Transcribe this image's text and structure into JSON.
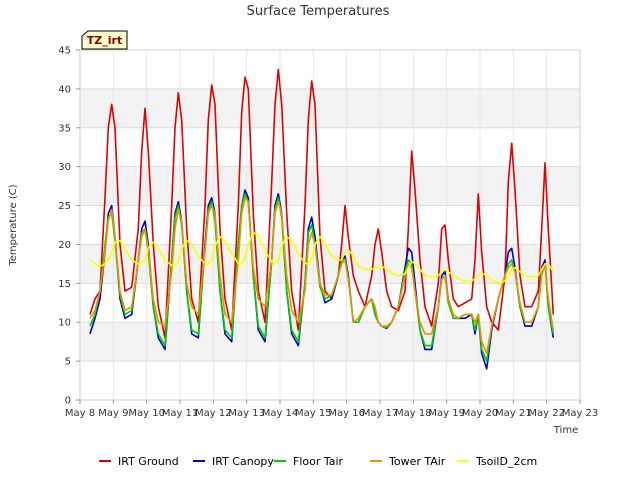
{
  "chart_data": {
    "type": "line",
    "title": "Surface Temperatures",
    "xlabel": "Time",
    "ylabel": "Temperature (C)",
    "site_tag": "TZ_irt",
    "xlim": [
      8,
      23
    ],
    "ylim": [
      0,
      45
    ],
    "x_ticks": [
      8,
      9,
      10,
      11,
      12,
      13,
      14,
      15,
      16,
      17,
      18,
      19,
      20,
      21,
      22,
      23
    ],
    "x_tick_labels": [
      "May 8",
      "May 9",
      "May 10",
      "May 11",
      "May 12",
      "May 13",
      "May 14",
      "May 15",
      "May 16",
      "May 17",
      "May 18",
      "May 19",
      "May 20",
      "May 21",
      "May 22",
      "May 23"
    ],
    "y_ticks": [
      0,
      5,
      10,
      15,
      20,
      25,
      30,
      35,
      40,
      45
    ],
    "y_tick_labels": [
      "0",
      "5",
      "10",
      "15",
      "20",
      "25",
      "30",
      "35",
      "40",
      "45"
    ],
    "grid": true,
    "legend_position": "bottom",
    "series": [
      {
        "name": "IRT Ground",
        "color": "#e00000",
        "x": [
          8.3,
          8.45,
          8.6,
          8.75,
          8.85,
          8.95,
          9.05,
          9.2,
          9.35,
          9.55,
          9.75,
          9.85,
          9.95,
          10.05,
          10.2,
          10.35,
          10.55,
          10.75,
          10.85,
          10.95,
          11.05,
          11.2,
          11.35,
          11.55,
          11.75,
          11.85,
          11.95,
          12.05,
          12.2,
          12.35,
          12.55,
          12.75,
          12.85,
          12.95,
          13.05,
          13.2,
          13.35,
          13.55,
          13.75,
          13.85,
          13.95,
          14.05,
          14.2,
          14.35,
          14.55,
          14.75,
          14.85,
          14.95,
          15.05,
          15.2,
          15.35,
          15.55,
          15.75,
          15.85,
          15.95,
          16.05,
          16.2,
          16.35,
          16.55,
          16.75,
          16.85,
          16.95,
          17.05,
          17.2,
          17.35,
          17.55,
          17.75,
          17.85,
          17.95,
          18.05,
          18.2,
          18.35,
          18.55,
          18.75,
          18.85,
          18.95,
          19.05,
          19.2,
          19.35,
          19.55,
          19.75,
          19.85,
          19.95,
          20.05,
          20.2,
          20.35,
          20.55,
          20.75,
          20.85,
          20.95,
          21.05,
          21.2,
          21.35,
          21.55,
          21.75,
          21.85,
          21.95,
          22.05,
          22.2
        ],
        "y": [
          11.0,
          13.0,
          14.0,
          26.0,
          35.0,
          38.0,
          35.0,
          20.0,
          14.0,
          14.5,
          22.0,
          32.0,
          37.5,
          32.0,
          20.0,
          12.0,
          8.0,
          25.0,
          35.0,
          39.5,
          36.0,
          22.0,
          13.0,
          10.0,
          25.0,
          36.0,
          40.5,
          38.0,
          22.0,
          13.0,
          9.0,
          25.0,
          37.0,
          41.5,
          40.0,
          24.0,
          14.0,
          10.0,
          28.0,
          38.0,
          42.5,
          38.0,
          24.0,
          14.0,
          9.0,
          25.0,
          36.0,
          41.0,
          38.0,
          21.0,
          14.0,
          13.0,
          16.0,
          20.0,
          25.0,
          21.0,
          16.0,
          14.0,
          12.0,
          16.0,
          20.0,
          22.0,
          19.0,
          14.0,
          12.0,
          11.5,
          14.0,
          22.0,
          32.0,
          27.0,
          18.0,
          12.0,
          9.5,
          15.0,
          22.0,
          22.5,
          18.0,
          13.0,
          12.0,
          12.5,
          13.0,
          18.0,
          26.5,
          19.0,
          12.0,
          10.0,
          9.0,
          16.0,
          28.0,
          33.0,
          27.0,
          16.0,
          12.0,
          12.0,
          14.0,
          22.0,
          30.5,
          22.0,
          11.0
        ]
      },
      {
        "name": "IRT Canopy",
        "color": "#0000cc",
        "x": [
          8.3,
          8.45,
          8.6,
          8.75,
          8.85,
          8.95,
          9.05,
          9.2,
          9.35,
          9.55,
          9.75,
          9.85,
          9.95,
          10.05,
          10.2,
          10.35,
          10.55,
          10.75,
          10.85,
          10.95,
          11.05,
          11.2,
          11.35,
          11.55,
          11.75,
          11.85,
          11.95,
          12.05,
          12.2,
          12.35,
          12.55,
          12.75,
          12.85,
          12.95,
          13.05,
          13.2,
          13.35,
          13.55,
          13.75,
          13.85,
          13.95,
          14.05,
          14.2,
          14.35,
          14.55,
          14.75,
          14.85,
          14.95,
          15.05,
          15.2,
          15.35,
          15.55,
          15.75,
          15.85,
          15.95,
          16.05,
          16.2,
          16.35,
          16.55,
          16.75,
          16.85,
          16.95,
          17.05,
          17.2,
          17.35,
          17.55,
          17.75,
          17.85,
          17.95,
          18.05,
          18.2,
          18.35,
          18.55,
          18.75,
          18.85,
          18.95,
          19.05,
          19.2,
          19.35,
          19.55,
          19.75,
          19.85,
          19.95,
          20.05,
          20.2,
          20.35,
          20.55,
          20.75,
          20.85,
          20.95,
          21.05,
          21.2,
          21.35,
          21.55,
          21.75,
          21.85,
          21.95,
          22.05,
          22.2
        ],
        "y": [
          8.5,
          10.5,
          13.0,
          19.0,
          24.0,
          25.0,
          21.0,
          13.0,
          10.5,
          11.0,
          18.0,
          22.0,
          23.0,
          20.0,
          12.0,
          8.0,
          6.5,
          18.0,
          24.0,
          25.5,
          23.0,
          14.0,
          8.5,
          8.0,
          20.0,
          25.0,
          26.0,
          24.0,
          14.0,
          8.5,
          7.5,
          20.0,
          25.0,
          27.0,
          26.0,
          16.0,
          9.0,
          7.5,
          18.0,
          25.0,
          26.5,
          24.0,
          14.0,
          8.5,
          7.0,
          15.0,
          22.0,
          23.5,
          21.0,
          15.0,
          12.5,
          13.0,
          16.0,
          18.0,
          18.5,
          16.0,
          10.0,
          10.0,
          12.0,
          13.0,
          11.0,
          10.0,
          9.5,
          9.2,
          10.0,
          12.0,
          17.0,
          19.5,
          19.0,
          15.0,
          9.0,
          6.5,
          6.5,
          12.0,
          16.0,
          16.5,
          13.0,
          10.5,
          10.5,
          10.5,
          11.0,
          8.5,
          11.0,
          6.0,
          4.0,
          9.0,
          13.0,
          16.0,
          19.0,
          19.5,
          17.0,
          12.0,
          9.5,
          9.5,
          12.0,
          17.0,
          18.0,
          12.0,
          8.0
        ]
      },
      {
        "name": "Floor Tair",
        "color": "#00cc00",
        "x": [
          8.3,
          8.45,
          8.6,
          8.75,
          8.85,
          8.95,
          9.05,
          9.2,
          9.35,
          9.55,
          9.75,
          9.85,
          9.95,
          10.05,
          10.2,
          10.35,
          10.55,
          10.75,
          10.85,
          10.95,
          11.05,
          11.2,
          11.35,
          11.55,
          11.75,
          11.85,
          11.95,
          12.05,
          12.2,
          12.35,
          12.55,
          12.75,
          12.85,
          12.95,
          13.05,
          13.2,
          13.35,
          13.55,
          13.75,
          13.85,
          13.95,
          14.05,
          14.2,
          14.35,
          14.55,
          14.75,
          14.85,
          14.95,
          15.05,
          15.2,
          15.35,
          15.55,
          15.75,
          15.85,
          15.95,
          16.05,
          16.2,
          16.35,
          16.55,
          16.75,
          16.85,
          16.95,
          17.05,
          17.2,
          17.35,
          17.55,
          17.75,
          17.85,
          17.95,
          18.05,
          18.2,
          18.35,
          18.55,
          18.75,
          18.85,
          18.95,
          19.05,
          19.2,
          19.35,
          19.55,
          19.75,
          19.85,
          19.95,
          20.05,
          20.2,
          20.35,
          20.55,
          20.75,
          20.85,
          20.95,
          21.05,
          21.2,
          21.35,
          21.55,
          21.75,
          21.85,
          21.95,
          22.05,
          22.2
        ],
        "y": [
          9.5,
          11.0,
          14.0,
          20.0,
          23.5,
          24.0,
          20.5,
          13.5,
          11.0,
          11.5,
          18.0,
          21.5,
          22.0,
          19.0,
          12.0,
          8.5,
          7.0,
          18.0,
          23.5,
          25.0,
          22.5,
          14.0,
          9.0,
          8.5,
          19.5,
          24.5,
          25.5,
          23.0,
          14.0,
          9.0,
          8.0,
          20.0,
          25.0,
          26.5,
          25.5,
          16.0,
          9.5,
          8.0,
          18.0,
          24.5,
          26.0,
          23.5,
          14.0,
          9.0,
          7.5,
          15.0,
          21.5,
          22.5,
          20.0,
          14.5,
          13.0,
          13.5,
          16.0,
          18.0,
          18.0,
          15.5,
          10.0,
          10.0,
          12.0,
          13.0,
          11.0,
          10.0,
          9.5,
          9.3,
          10.0,
          12.0,
          16.5,
          18.0,
          17.5,
          14.0,
          9.0,
          7.0,
          7.0,
          12.0,
          15.5,
          16.0,
          12.5,
          10.5,
          10.5,
          11.0,
          11.0,
          9.0,
          11.0,
          6.5,
          5.0,
          9.5,
          13.0,
          16.0,
          17.5,
          18.0,
          16.5,
          12.0,
          10.0,
          10.0,
          12.0,
          16.5,
          17.5,
          12.0,
          8.5
        ]
      },
      {
        "name": "Tower TAir",
        "color": "#e69500",
        "x": [
          8.3,
          8.45,
          8.6,
          8.75,
          8.85,
          8.95,
          9.05,
          9.2,
          9.35,
          9.55,
          9.75,
          9.85,
          9.95,
          10.05,
          10.2,
          10.35,
          10.55,
          10.75,
          10.85,
          10.95,
          11.05,
          11.2,
          11.35,
          11.55,
          11.75,
          11.85,
          11.95,
          12.05,
          12.2,
          12.35,
          12.55,
          12.75,
          12.85,
          12.95,
          13.05,
          13.2,
          13.35,
          13.55,
          13.75,
          13.85,
          13.95,
          14.05,
          14.2,
          14.35,
          14.55,
          14.75,
          14.85,
          14.95,
          15.05,
          15.2,
          15.35,
          15.55,
          15.75,
          15.85,
          15.95,
          16.05,
          16.2,
          16.35,
          16.55,
          16.75,
          16.85,
          16.95,
          17.05,
          17.2,
          17.35,
          17.55,
          17.75,
          17.85,
          17.95,
          18.05,
          18.2,
          18.35,
          18.55,
          18.75,
          18.85,
          18.95,
          19.05,
          19.2,
          19.35,
          19.55,
          19.75,
          19.85,
          19.95,
          20.05,
          20.2,
          20.35,
          20.55,
          20.75,
          20.85,
          20.95,
          21.05,
          21.2,
          21.35,
          21.55,
          21.75,
          21.85,
          21.95,
          22.05,
          22.2
        ],
        "y": [
          10.5,
          11.5,
          14.0,
          19.0,
          23.0,
          24.5,
          21.0,
          14.0,
          11.5,
          12.0,
          18.0,
          21.0,
          22.0,
          19.5,
          13.0,
          10.0,
          9.5,
          16.5,
          22.0,
          24.5,
          23.0,
          15.0,
          12.0,
          11.0,
          19.0,
          24.0,
          25.0,
          24.0,
          16.0,
          11.0,
          10.0,
          18.0,
          24.0,
          26.0,
          25.5,
          17.0,
          13.0,
          12.0,
          18.0,
          24.0,
          25.5,
          24.0,
          16.0,
          11.5,
          10.0,
          14.0,
          20.0,
          21.5,
          20.0,
          15.0,
          13.5,
          13.5,
          16.0,
          17.5,
          18.0,
          15.5,
          10.0,
          10.5,
          12.0,
          13.0,
          12.0,
          10.0,
          9.5,
          9.5,
          10.0,
          12.0,
          16.0,
          17.5,
          17.0,
          14.0,
          10.0,
          8.5,
          8.5,
          12.0,
          15.5,
          16.0,
          13.0,
          11.0,
          10.5,
          11.0,
          11.0,
          10.0,
          11.0,
          7.5,
          6.0,
          9.5,
          13.0,
          16.0,
          17.0,
          17.5,
          16.5,
          12.5,
          10.0,
          10.0,
          12.0,
          16.0,
          17.5,
          13.0,
          9.0
        ]
      },
      {
        "name": "TsoilD_2cm",
        "color": "#ffff00",
        "x": [
          8.3,
          8.45,
          8.6,
          8.75,
          8.85,
          8.95,
          9.05,
          9.2,
          9.35,
          9.55,
          9.75,
          9.85,
          9.95,
          10.05,
          10.2,
          10.35,
          10.55,
          10.75,
          10.85,
          10.95,
          11.05,
          11.2,
          11.35,
          11.55,
          11.75,
          11.85,
          11.95,
          12.05,
          12.2,
          12.35,
          12.55,
          12.75,
          12.85,
          12.95,
          13.05,
          13.2,
          13.35,
          13.55,
          13.75,
          13.85,
          13.95,
          14.05,
          14.2,
          14.35,
          14.55,
          14.75,
          14.85,
          14.95,
          15.05,
          15.2,
          15.35,
          15.55,
          15.75,
          15.85,
          15.95,
          16.05,
          16.2,
          16.35,
          16.55,
          16.75,
          16.85,
          16.95,
          17.05,
          17.2,
          17.35,
          17.55,
          17.75,
          17.85,
          17.95,
          18.05,
          18.2,
          18.35,
          18.55,
          18.75,
          18.85,
          18.95,
          19.05,
          19.2,
          19.35,
          19.55,
          19.75,
          19.85,
          19.95,
          20.05,
          20.2,
          20.35,
          20.55,
          20.75,
          20.85,
          20.95,
          21.05,
          21.2,
          21.35,
          21.55,
          21.75,
          21.85,
          21.95,
          22.05,
          22.2
        ],
        "y": [
          18.0,
          17.5,
          17.2,
          17.5,
          18.0,
          19.0,
          20.3,
          20.5,
          19.5,
          18.0,
          17.5,
          17.6,
          18.0,
          19.5,
          20.3,
          19.5,
          18.0,
          17.3,
          17.3,
          17.8,
          19.5,
          20.5,
          20.0,
          18.5,
          17.5,
          17.5,
          18.0,
          19.8,
          21.0,
          20.5,
          18.8,
          17.6,
          17.5,
          18.2,
          20.0,
          21.5,
          21.2,
          19.2,
          17.8,
          17.5,
          18.0,
          19.8,
          21.0,
          20.5,
          18.8,
          17.6,
          17.5,
          18.2,
          20.0,
          21.0,
          20.0,
          18.5,
          18.0,
          18.0,
          19.0,
          19.3,
          18.5,
          17.2,
          16.8,
          16.8,
          17.0,
          17.2,
          17.2,
          16.8,
          16.3,
          16.0,
          16.2,
          17.0,
          17.8,
          17.5,
          16.8,
          16.0,
          15.8,
          16.0,
          16.5,
          16.8,
          16.5,
          16.0,
          15.6,
          15.3,
          15.3,
          15.6,
          16.0,
          16.3,
          16.0,
          15.4,
          15.0,
          15.3,
          16.0,
          16.8,
          17.0,
          16.5,
          16.0,
          15.8,
          16.0,
          16.8,
          17.5,
          17.5,
          16.5
        ]
      }
    ]
  }
}
